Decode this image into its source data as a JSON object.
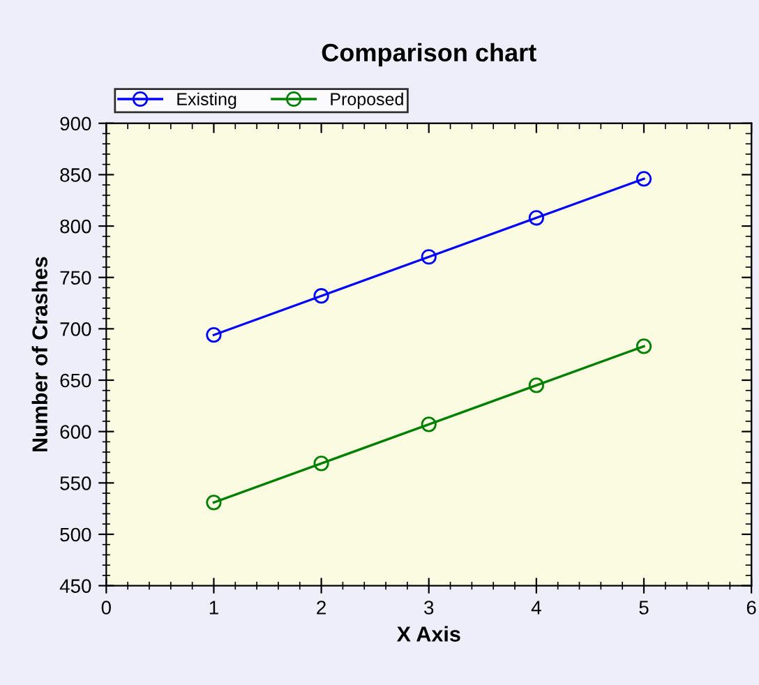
{
  "chart_data": {
    "type": "line",
    "title": "Comparison chart",
    "xlabel": "X Axis",
    "ylabel": "Number of Crashes",
    "x": [
      1,
      2,
      3,
      4,
      5
    ],
    "series": [
      {
        "name": "Existing",
        "color": "#0000ff",
        "values": [
          694,
          732,
          770,
          808,
          846
        ]
      },
      {
        "name": "Proposed",
        "color": "#008000",
        "values": [
          531,
          569,
          607,
          645,
          683
        ]
      }
    ],
    "xlim": [
      0,
      6
    ],
    "xticks": [
      0,
      1,
      2,
      3,
      4,
      5,
      6
    ],
    "ylim": [
      450,
      900
    ],
    "yticks": [
      450,
      500,
      550,
      600,
      650,
      700,
      750,
      800,
      850,
      900
    ],
    "grid": false,
    "legend": "top left",
    "marker": "circle",
    "line_style": "solid"
  }
}
